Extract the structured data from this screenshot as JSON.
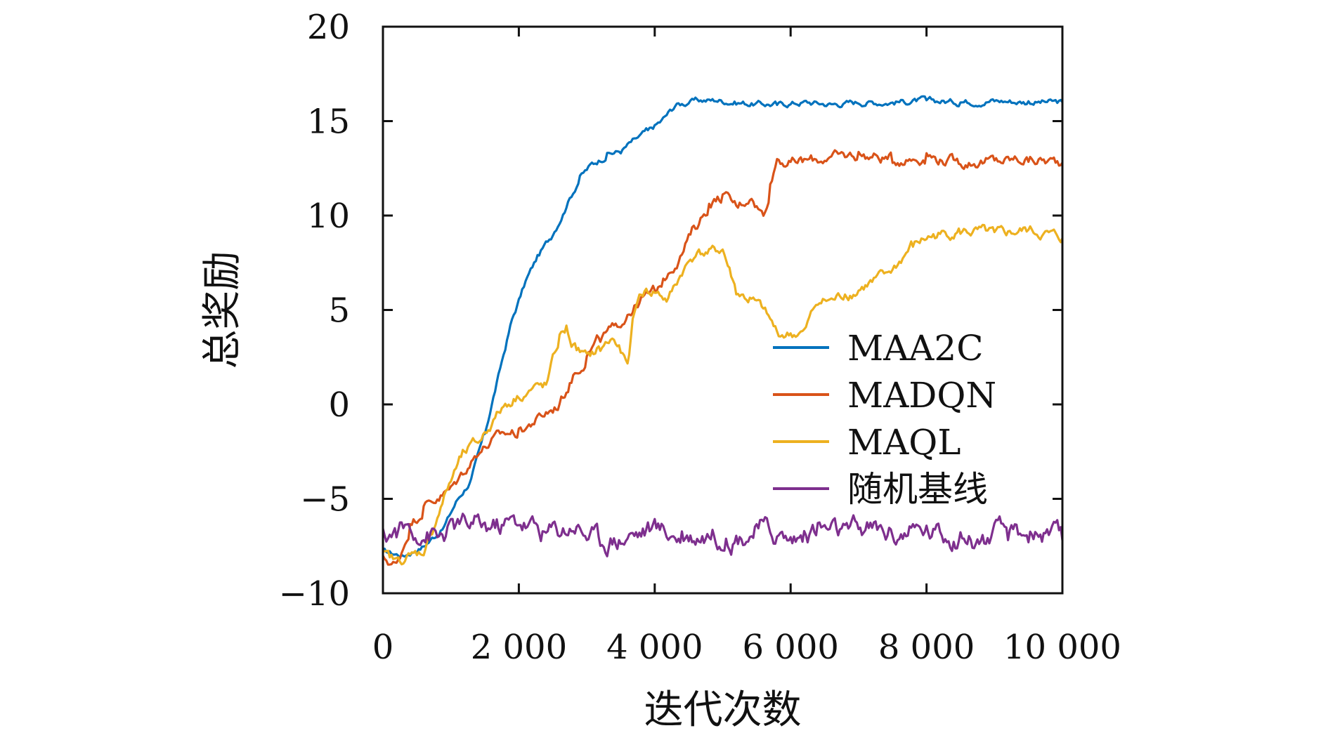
{
  "chart_data": {
    "type": "line",
    "title": "",
    "xlabel": "迭代次数",
    "ylabel": "总奖励",
    "xlim": [
      0,
      10000
    ],
    "ylim": [
      -10,
      20
    ],
    "x_ticks": [
      0,
      2000,
      4000,
      6000,
      8000,
      10000
    ],
    "x_tick_labels": [
      "0",
      "2 000",
      "4 000",
      "6 000",
      "8 000",
      "10 000"
    ],
    "y_ticks": [
      -10,
      -5,
      0,
      5,
      10,
      15,
      20
    ],
    "y_tick_labels": [
      "−10",
      "−5",
      "0",
      "5",
      "10",
      "15",
      "20"
    ],
    "grid": false,
    "legend_position": "right-middle",
    "series": [
      {
        "name": "MAA2C",
        "color": "#0072BD",
        "x": [
          0,
          300,
          600,
          900,
          1100,
          1300,
          1500,
          1700,
          1900,
          2100,
          2300,
          2500,
          2700,
          2900,
          3100,
          3300,
          3500,
          3700,
          3900,
          4100,
          4300,
          4500,
          4700,
          4900,
          5200,
          5500,
          5800,
          6200,
          6600,
          7000,
          7500,
          8000,
          8500,
          9000,
          9500,
          10000
        ],
        "y": [
          -7.8,
          -8.0,
          -7.5,
          -6.5,
          -5.0,
          -4.0,
          -1.5,
          1.5,
          4.5,
          6.5,
          8.0,
          9.0,
          10.5,
          12.0,
          12.8,
          13.2,
          13.4,
          14.0,
          14.5,
          15.0,
          15.8,
          16.0,
          16.1,
          16.1,
          16.0,
          15.9,
          15.9,
          16.0,
          15.9,
          16.0,
          16.0,
          16.1,
          16.0,
          16.1,
          16.0,
          16.0
        ]
      },
      {
        "name": "MADQN",
        "color": "#D95319",
        "x": [
          0,
          200,
          400,
          600,
          800,
          1000,
          1200,
          1400,
          1600,
          1800,
          2000,
          2200,
          2400,
          2600,
          2800,
          3000,
          3200,
          3400,
          3600,
          3800,
          4000,
          4200,
          4400,
          4600,
          4800,
          5000,
          5200,
          5400,
          5600,
          5700,
          5800,
          6000,
          6500,
          7000,
          7500,
          8000,
          8500,
          9000,
          9500,
          10000
        ],
        "y": [
          -8.2,
          -8.5,
          -6.5,
          -5.5,
          -5.0,
          -4.5,
          -3.5,
          -2.5,
          -2.0,
          -1.5,
          -1.5,
          -1.0,
          -0.5,
          0.0,
          1.5,
          2.5,
          3.5,
          4.0,
          4.8,
          5.5,
          6.0,
          7.0,
          8.0,
          9.5,
          10.5,
          11.0,
          10.5,
          11.0,
          10.0,
          11.5,
          13.0,
          12.8,
          13.0,
          13.2,
          13.0,
          13.1,
          12.8,
          12.9,
          13.0,
          12.8
        ]
      },
      {
        "name": "MAQL",
        "color": "#EDB120",
        "x": [
          0,
          200,
          400,
          600,
          800,
          1000,
          1200,
          1400,
          1600,
          1800,
          2000,
          2200,
          2400,
          2600,
          2700,
          2800,
          3000,
          3200,
          3400,
          3600,
          3700,
          3800,
          4000,
          4200,
          4400,
          4600,
          4800,
          5000,
          5200,
          5400,
          5600,
          5800,
          6000,
          6200,
          6400,
          6600,
          6800,
          7000,
          7200,
          7400,
          7600,
          7800,
          8000,
          8200,
          8500,
          9000,
          9500,
          10000
        ],
        "y": [
          -8.0,
          -8.3,
          -8.0,
          -7.8,
          -6.0,
          -4.0,
          -2.5,
          -2.0,
          -1.0,
          0.0,
          0.5,
          0.8,
          1.0,
          3.5,
          4.0,
          3.0,
          2.5,
          3.0,
          3.5,
          2.0,
          5.0,
          6.0,
          6.0,
          5.5,
          7.0,
          8.0,
          8.0,
          8.2,
          6.0,
          5.5,
          5.0,
          3.8,
          3.7,
          3.8,
          5.5,
          5.5,
          5.8,
          6.0,
          6.5,
          6.8,
          7.5,
          8.5,
          8.8,
          9.0,
          9.2,
          9.0,
          9.2,
          8.8
        ]
      },
      {
        "name": "随机基线",
        "color": "#7E2F8E",
        "x": [
          0,
          400,
          800,
          1200,
          1600,
          2000,
          2400,
          2800,
          3200,
          3600,
          4000,
          4400,
          4800,
          5200,
          5600,
          6000,
          6400,
          6800,
          7200,
          7600,
          8000,
          8400,
          8800,
          9200,
          9600,
          10000
        ],
        "y": [
          -7.0,
          -6.5,
          -7.0,
          -6.3,
          -6.5,
          -6.2,
          -6.8,
          -6.4,
          -7.2,
          -7.0,
          -6.5,
          -7.0,
          -6.8,
          -7.1,
          -6.5,
          -7.2,
          -6.6,
          -6.8,
          -6.5,
          -6.9,
          -6.7,
          -7.0,
          -7.2,
          -6.8,
          -6.8,
          -7.2
        ]
      }
    ]
  }
}
